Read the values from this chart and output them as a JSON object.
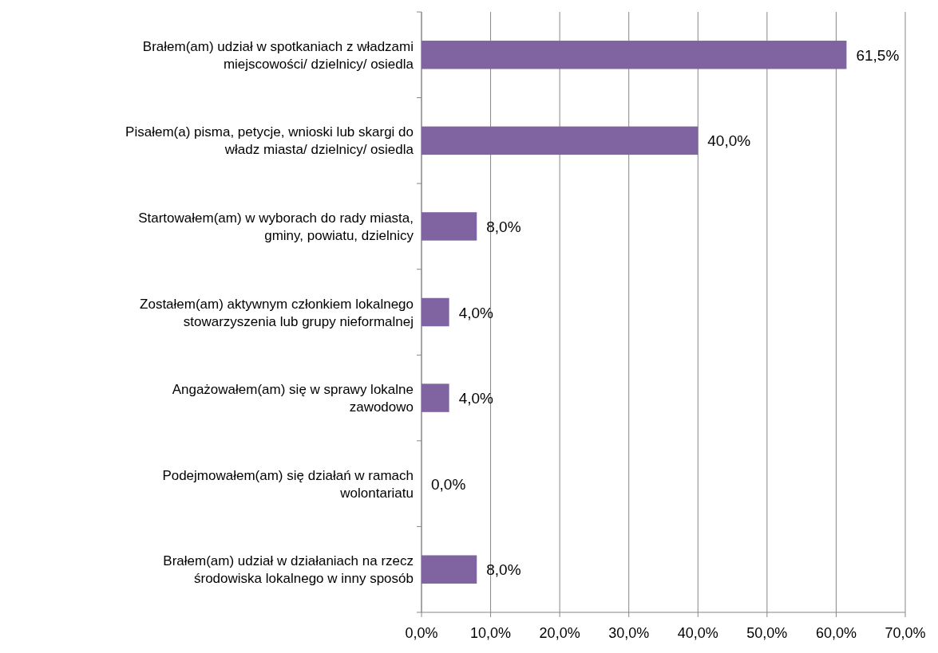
{
  "chart_data": {
    "type": "bar",
    "orientation": "horizontal",
    "categories": [
      "Brałem(am) udział w spotkaniach z władzami\nmiejscowości/ dzielnicy/ osiedla",
      "Pisałem(a) pisma, petycje, wnioski lub skargi do\nwładz miasta/ dzielnicy/ osiedla",
      "Startowałem(am) w wyborach do rady miasta,\ngminy, powiatu, dzielnicy",
      "Zostałem(am) aktywnym członkiem lokalnego\nstowarzyszenia lub grupy nieformalnej",
      "Angażowałem(am) się w sprawy lokalne\nzawodowo",
      "Podejmowałem(am) się działań w ramach\nwolontariatu",
      "Brałem(am) udział w działaniach na rzecz\nśrodowiska lokalnego w inny sposób"
    ],
    "values": [
      61.5,
      40,
      8,
      4,
      4,
      0,
      8
    ],
    "value_labels": [
      "61,5%",
      "40,0%",
      "8,0%",
      "4,0%",
      "4,0%",
      "0,0%",
      "8,0%"
    ],
    "color": "#8064a2",
    "xlim": [
      0,
      70
    ],
    "xticks": [
      {
        "value": 0,
        "label": "0,0%"
      },
      {
        "value": 10,
        "label": "10,0%"
      },
      {
        "value": 20,
        "label": "20,0%"
      },
      {
        "value": 30,
        "label": "30,0%"
      },
      {
        "value": 40,
        "label": "40,0%"
      },
      {
        "value": 50,
        "label": "50,0%"
      },
      {
        "value": 60,
        "label": "60,0%"
      },
      {
        "value": 70,
        "label": "70,0%"
      }
    ],
    "grid": "x"
  }
}
